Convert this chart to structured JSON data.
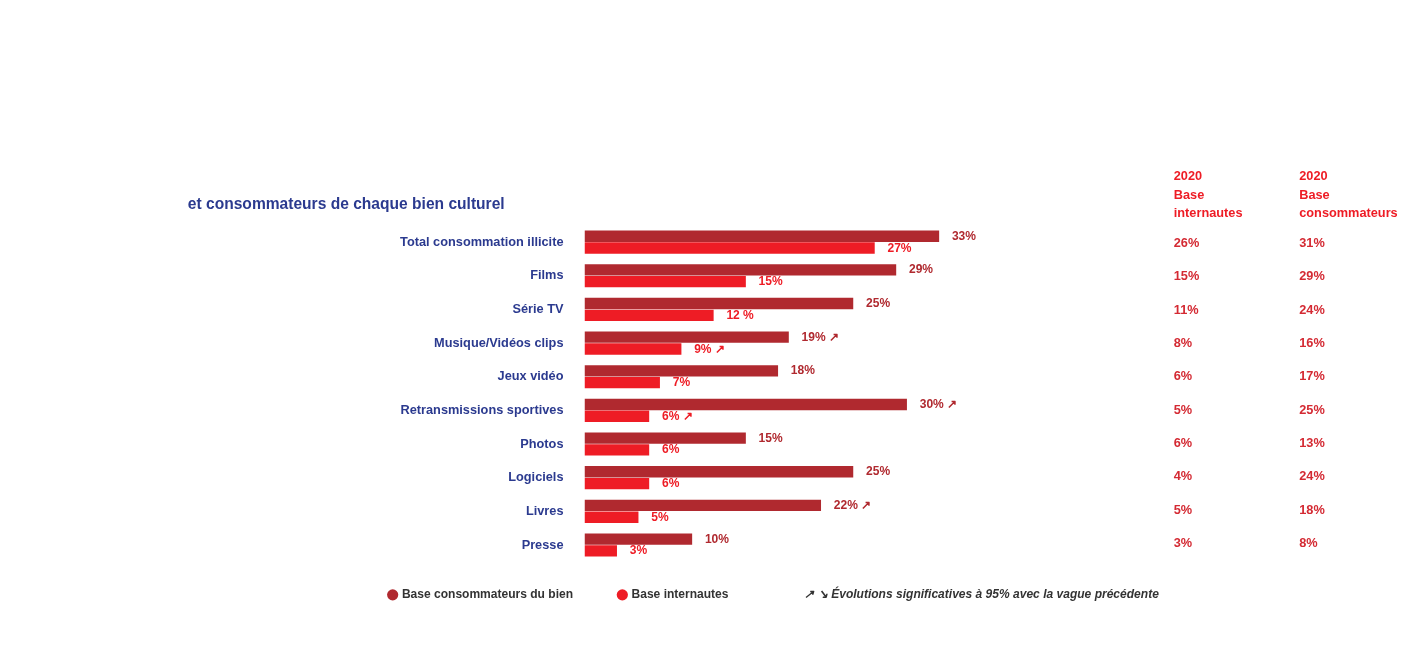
{
  "chart_data": [
    {
      "type": "bar",
      "orientation": "horizontal",
      "title": "et consommateurs de chaque bien culturel",
      "categories": [
        "Total consommation illicite",
        "Films",
        "Série TV",
        "Musique/Vidéos clips",
        "Jeux vidéo",
        "Retransmissions sportives",
        "Photos",
        "Logiciels",
        "Livres",
        "Presse"
      ],
      "series": [
        {
          "name": "Base consommateurs du bien",
          "color": "#b0292f",
          "values": [
            33,
            29,
            25,
            19,
            18,
            30,
            15,
            25,
            22,
            10
          ],
          "value_labels": [
            "33%",
            "29%",
            "25%",
            "19% ↗",
            "18%",
            "30% ↗",
            "15%",
            "25%",
            "22% ↗",
            "10%"
          ]
        },
        {
          "name": "Base internautes",
          "color": "#ee1c25",
          "values": [
            27,
            15,
            12,
            9,
            7,
            6,
            6,
            6,
            5,
            3
          ],
          "value_labels": [
            "27%",
            "15%",
            "12 %",
            "9% ↗",
            "7%",
            "6% ↗",
            "6%",
            "6%",
            "5%",
            "3%"
          ]
        }
      ],
      "legend": "bottom",
      "annotations": [
        "↗ ↘ Évolutions significatives à 95% avec la vague précédente"
      ]
    },
    {
      "type": "other",
      "annotations": [
        "2020\nBase\ninternautes",
        "2020\nBase\nconsommateurs",
        "26%",
        "31%",
        "15%",
        "29%",
        "11%",
        "24%",
        "8%",
        "16%",
        "6%",
        "17%",
        "5%",
        "25%",
        "6%",
        "13%",
        "4%",
        "24%",
        "5%",
        "18%",
        "3%",
        "8%"
      ]
    }
  ]
}
